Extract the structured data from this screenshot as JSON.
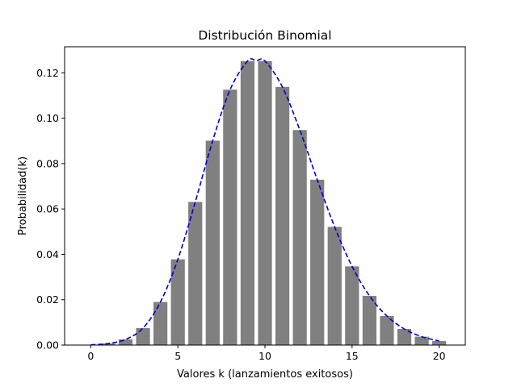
{
  "chart_data": {
    "type": "bar",
    "title": "Distribución Binomial",
    "xlabel": "Valores k (lanzamientos exitosos)",
    "ylabel": "Probabilidad(k)",
    "x": [
      0,
      1,
      2,
      3,
      4,
      5,
      6,
      7,
      8,
      9,
      10,
      11,
      12,
      13,
      14,
      15,
      16,
      17,
      18,
      19,
      20
    ],
    "values": [
      0.0001,
      0.0007,
      0.0025,
      0.0075,
      0.019,
      0.0378,
      0.0631,
      0.0901,
      0.1126,
      0.1252,
      0.1252,
      0.1138,
      0.0948,
      0.0729,
      0.0521,
      0.0347,
      0.0217,
      0.0128,
      0.0071,
      0.0037,
      0.0018
    ],
    "bar_color": "#808080",
    "line": {
      "style": "dashed",
      "color": "#0000cc",
      "x": [
        0,
        1,
        2,
        3,
        4,
        5,
        6,
        7,
        8,
        9,
        9.5,
        10,
        11,
        12,
        13,
        14,
        15,
        16,
        17,
        18,
        19,
        20
      ],
      "values": [
        0.0001,
        0.0007,
        0.0025,
        0.0075,
        0.019,
        0.0378,
        0.0631,
        0.0901,
        0.1126,
        0.1252,
        0.1254,
        0.1252,
        0.1138,
        0.0948,
        0.0729,
        0.0521,
        0.0347,
        0.0217,
        0.0128,
        0.0071,
        0.0037,
        0.0018
      ]
    },
    "xlim": [
      -1.5,
      21.5
    ],
    "ylim": [
      0,
      0.1315
    ],
    "xticks": [
      0,
      5,
      10,
      15,
      20
    ],
    "xtick_labels": [
      "0",
      "5",
      "10",
      "15",
      "20"
    ],
    "yticks": [
      0,
      0.02,
      0.04,
      0.06,
      0.08,
      0.1,
      0.12
    ],
    "ytick_labels": [
      "0.00",
      "0.02",
      "0.04",
      "0.06",
      "0.08",
      "0.10",
      "0.12"
    ],
    "grid": false
  }
}
